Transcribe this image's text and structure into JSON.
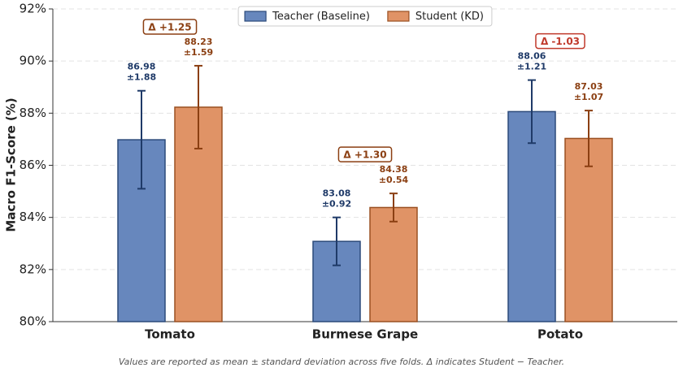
{
  "chart_data": {
    "type": "bar",
    "ylabel": "Macro F1-Score (%)",
    "categories": [
      "Tomato",
      "Burmese Grape",
      "Potato"
    ],
    "series": [
      {
        "name": "Teacher (Baseline)",
        "color": "#6787bd",
        "edge_color": "#2c4a7a",
        "label_color": "#1f3a68",
        "values": [
          86.98,
          83.08,
          88.06
        ],
        "errors": [
          1.88,
          0.92,
          1.21
        ],
        "error_labels": [
          "±1.88",
          "±0.92",
          "±1.21"
        ]
      },
      {
        "name": "Student (KD)",
        "color": "#e09366",
        "edge_color": "#9a5022",
        "label_color": "#8b3f12",
        "values": [
          88.23,
          84.38,
          87.03
        ],
        "errors": [
          1.59,
          0.54,
          1.07
        ],
        "error_labels": [
          "±1.59",
          "±0.54",
          "±1.07"
        ]
      }
    ],
    "annotations": [
      "Δ +1.25",
      "Δ +1.30",
      "Δ -1.03"
    ],
    "annotation_colors": [
      "#8b3f12",
      "#8b3f12",
      "#c0392b"
    ],
    "ylim": [
      80,
      92
    ],
    "yticks": [
      {
        "value": 80,
        "label": "80%"
      },
      {
        "value": 82,
        "label": "82%"
      },
      {
        "value": 84,
        "label": "84%"
      },
      {
        "value": 86,
        "label": "86%"
      },
      {
        "value": 88,
        "label": "88%"
      },
      {
        "value": 90,
        "label": "90%"
      },
      {
        "value": 92,
        "label": "92%"
      }
    ],
    "grid": true,
    "legend": "top",
    "footnote": "Values are reported as mean ± standard deviation across five folds. Δ indicates Student − Teacher."
  }
}
